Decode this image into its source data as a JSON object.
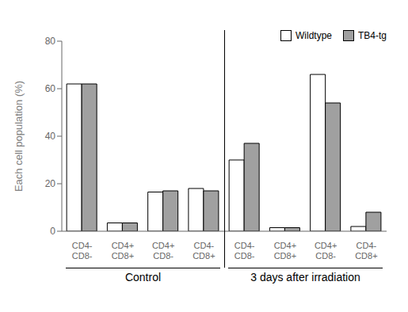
{
  "chart_data": {
    "type": "bar",
    "categories": [
      "CD4-\nCD8-",
      "CD4+\nCD8+",
      "CD4+\nCD8-",
      "CD4-\nCD8+",
      "CD4-\nCD8-",
      "CD4+\nCD8+",
      "CD4+\nCD8-",
      "CD4-\nCD8+"
    ],
    "series": [
      {
        "name": "Wildtype",
        "color": "#FFFFFF",
        "values": [
          62,
          3.5,
          16.5,
          18,
          30,
          1.5,
          66,
          2
        ]
      },
      {
        "name": "TB4-tg",
        "color": "#A0A0A0",
        "values": [
          62,
          3.5,
          17,
          17,
          37,
          1.5,
          54,
          8
        ]
      }
    ],
    "ylabel": "Each cell population (%)",
    "ylim": [
      0,
      80
    ],
    "yticks": [
      0,
      20,
      40,
      60,
      80
    ],
    "annotations": [
      {
        "text": "Control"
      },
      {
        "text": "3 days after irradiation"
      }
    ],
    "legend": "upper right",
    "grid": false
  }
}
